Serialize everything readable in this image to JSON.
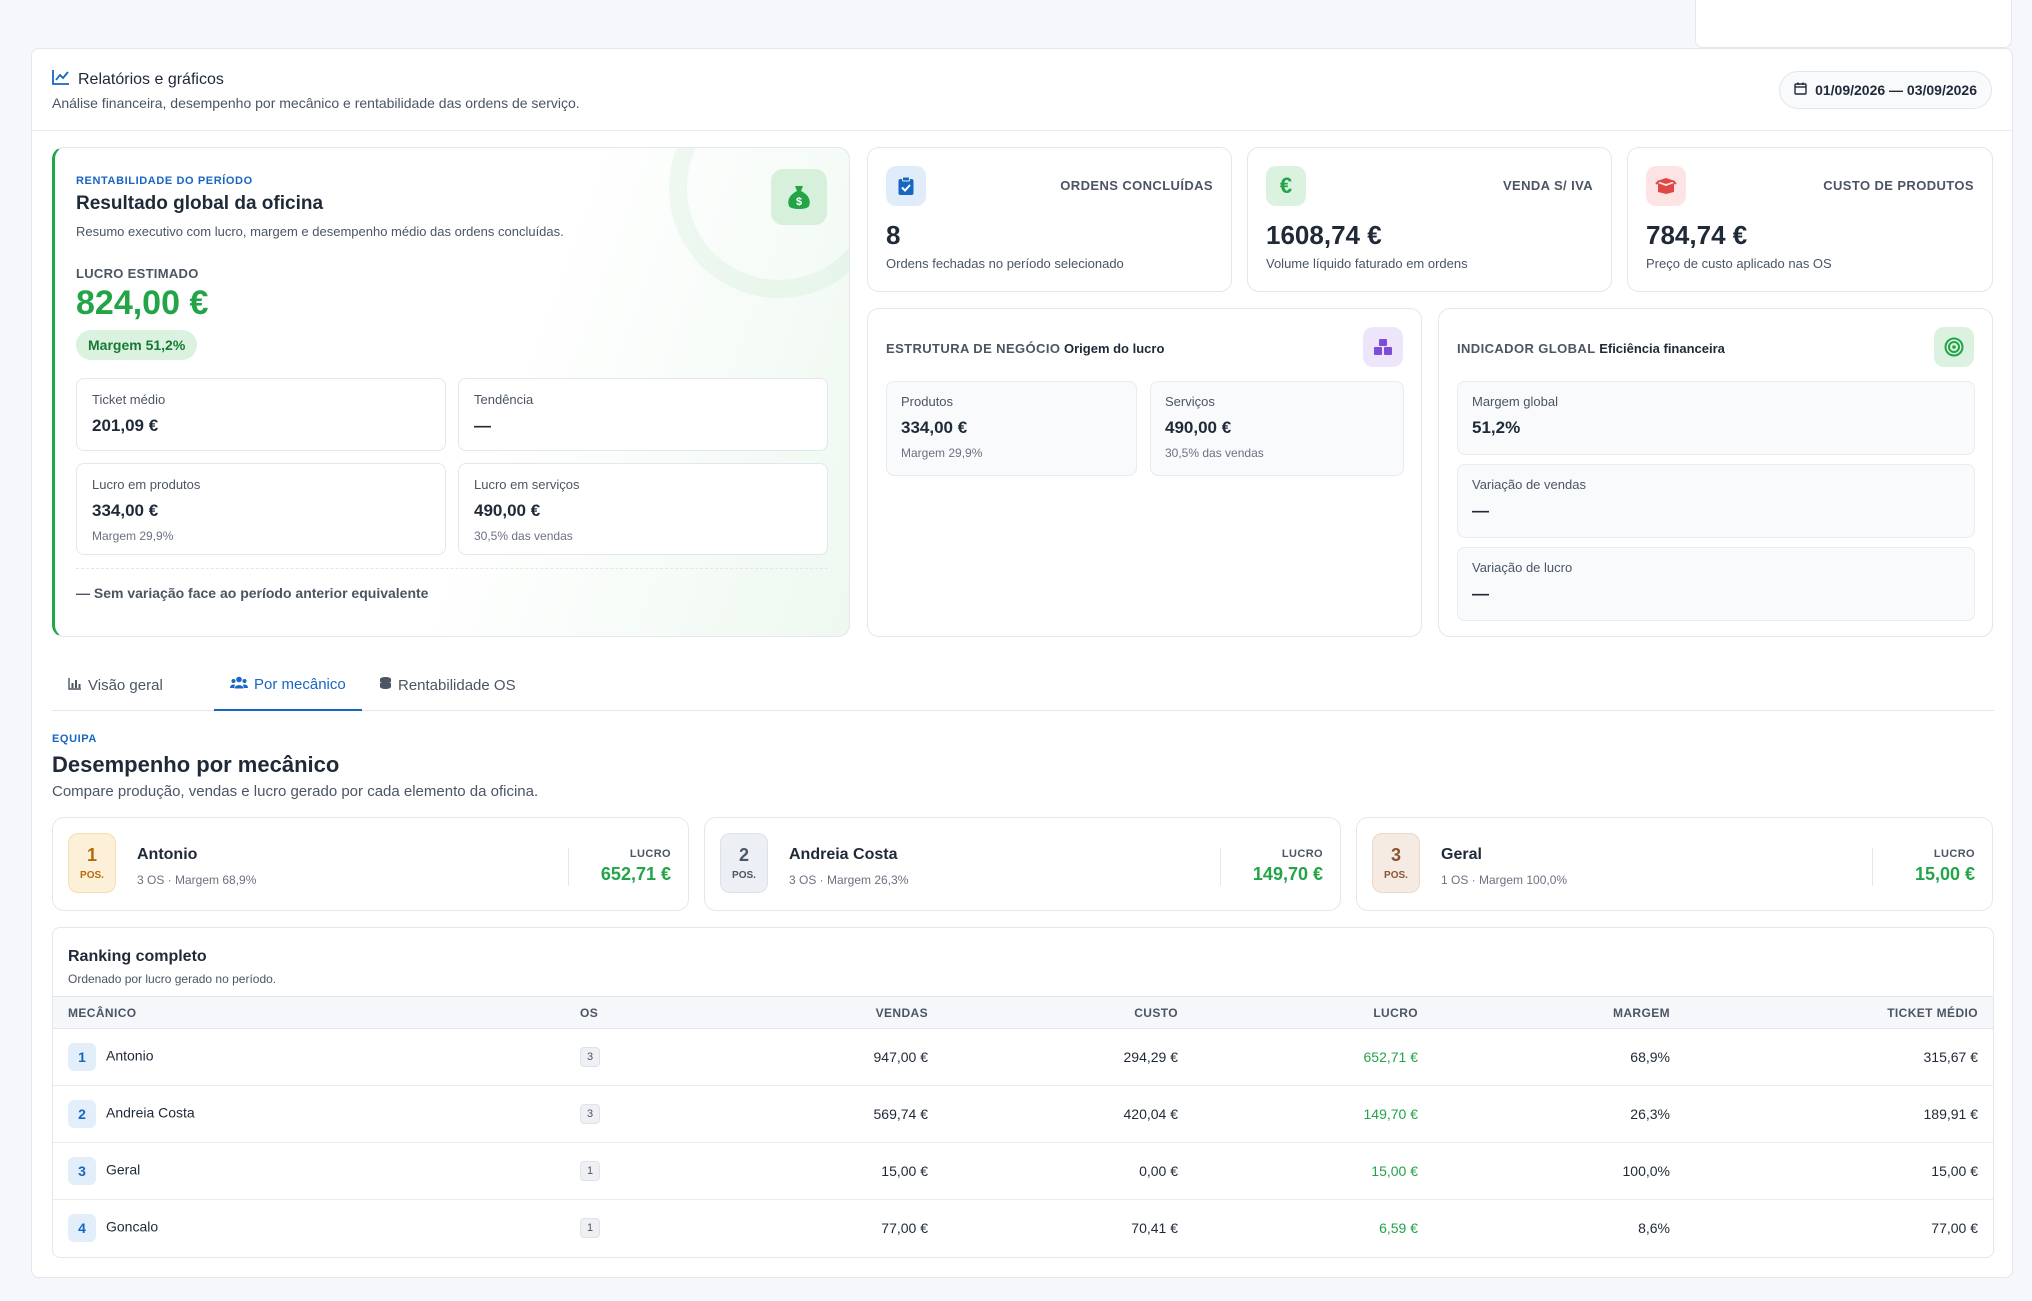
{
  "header": {
    "title": "Relatórios e gráficos",
    "subtitle": "Análise financeira, desempenho por mecânico e rentabilidade das ordens de serviço.",
    "date_range": "01/09/2026 — 03/09/2026"
  },
  "hero": {
    "eyebrow": "RENTABILIDADE DO PERÍODO",
    "title": "Resultado global da oficina",
    "subtitle": "Resumo executivo com lucro, margem e desempenho médio das ordens concluídas.",
    "profit_label": "LUCRO ESTIMADO",
    "profit_value": "824,00 €",
    "margin_badge": "Margem 51,2%",
    "ticket_label": "Ticket médio",
    "ticket_value": "201,09 €",
    "trend_label": "Tendência",
    "trend_value": "—",
    "products_label": "Lucro em produtos",
    "products_value": "334,00 €",
    "products_note": "Margem 29,9%",
    "services_label": "Lucro em serviços",
    "services_value": "490,00 €",
    "services_note": "30,5% das vendas",
    "footnote": "— Sem variação face ao período anterior equivalente"
  },
  "stats": [
    {
      "label": "ORDENS CONCLUÍDAS",
      "value": "8",
      "desc": "Ordens fechadas no período selecionado"
    },
    {
      "label": "VENDA S/ IVA",
      "value": "1608,74 €",
      "desc": "Volume líquido faturado em ordens"
    },
    {
      "label": "CUSTO DE PRODUTOS",
      "value": "784,74 €",
      "desc": "Preço de custo aplicado nas OS"
    }
  ],
  "structure": {
    "prefix": "ESTRUTURA DE NEGÓCIO",
    "title": "Origem do lucro",
    "products_label": "Produtos",
    "products_value": "334,00 €",
    "products_note": "Margem 29,9%",
    "services_label": "Serviços",
    "services_value": "490,00 €",
    "services_note": "30,5% das vendas"
  },
  "indicator": {
    "prefix": "INDICADOR GLOBAL",
    "title": "Eficiência financeira",
    "margin_label": "Margem global",
    "margin_value": "51,2%",
    "sales_var_label": "Variação de vendas",
    "sales_var_value": "—",
    "profit_var_label": "Variação de lucro",
    "profit_var_value": "—"
  },
  "tabs": {
    "overview": "Visão geral",
    "mechanic": "Por mecânico",
    "os_profit": "Rentabilidade OS"
  },
  "section": {
    "eyebrow": "EQUIPA",
    "title": "Desempenho por mecânico",
    "subtitle": "Compare produção, vendas e lucro gerado por cada elemento da oficina."
  },
  "top_mechanics": [
    {
      "pos": "1",
      "pos_label": "POS.",
      "name": "Antonio",
      "meta": "3 OS · Margem 68,9%",
      "profit_label": "LUCRO",
      "profit": "652,71 €"
    },
    {
      "pos": "2",
      "pos_label": "POS.",
      "name": "Andreia Costa",
      "meta": "3 OS · Margem 26,3%",
      "profit_label": "LUCRO",
      "profit": "149,70 €"
    },
    {
      "pos": "3",
      "pos_label": "POS.",
      "name": "Geral",
      "meta": "1 OS · Margem 100,0%",
      "profit_label": "LUCRO",
      "profit": "15,00 €"
    }
  ],
  "ranking": {
    "title": "Ranking completo",
    "subtitle": "Ordenado por lucro gerado no período.",
    "columns": [
      "MECÂNICO",
      "OS",
      "VENDAS",
      "CUSTO",
      "LUCRO",
      "MARGEM",
      "TICKET MÉDIO"
    ],
    "rows": [
      {
        "rank": "1",
        "name": "Antonio",
        "os": "3",
        "sales": "947,00 €",
        "cost": "294,29 €",
        "profit": "652,71 €",
        "margin": "68,9%",
        "ticket": "315,67 €"
      },
      {
        "rank": "2",
        "name": "Andreia Costa",
        "os": "3",
        "sales": "569,74 €",
        "cost": "420,04 €",
        "profit": "149,70 €",
        "margin": "26,3%",
        "ticket": "189,91 €"
      },
      {
        "rank": "3",
        "name": "Geral",
        "os": "1",
        "sales": "15,00 €",
        "cost": "0,00 €",
        "profit": "15,00 €",
        "margin": "100,0%",
        "ticket": "15,00 €"
      },
      {
        "rank": "4",
        "name": "Goncalo",
        "os": "1",
        "sales": "77,00 €",
        "cost": "70,41 €",
        "profit": "6,59 €",
        "margin": "8,6%",
        "ticket": "77,00 €"
      }
    ]
  },
  "colors": {
    "accent": "#1766c2",
    "profit_green": "#22a447",
    "danger": "#e04848"
  }
}
